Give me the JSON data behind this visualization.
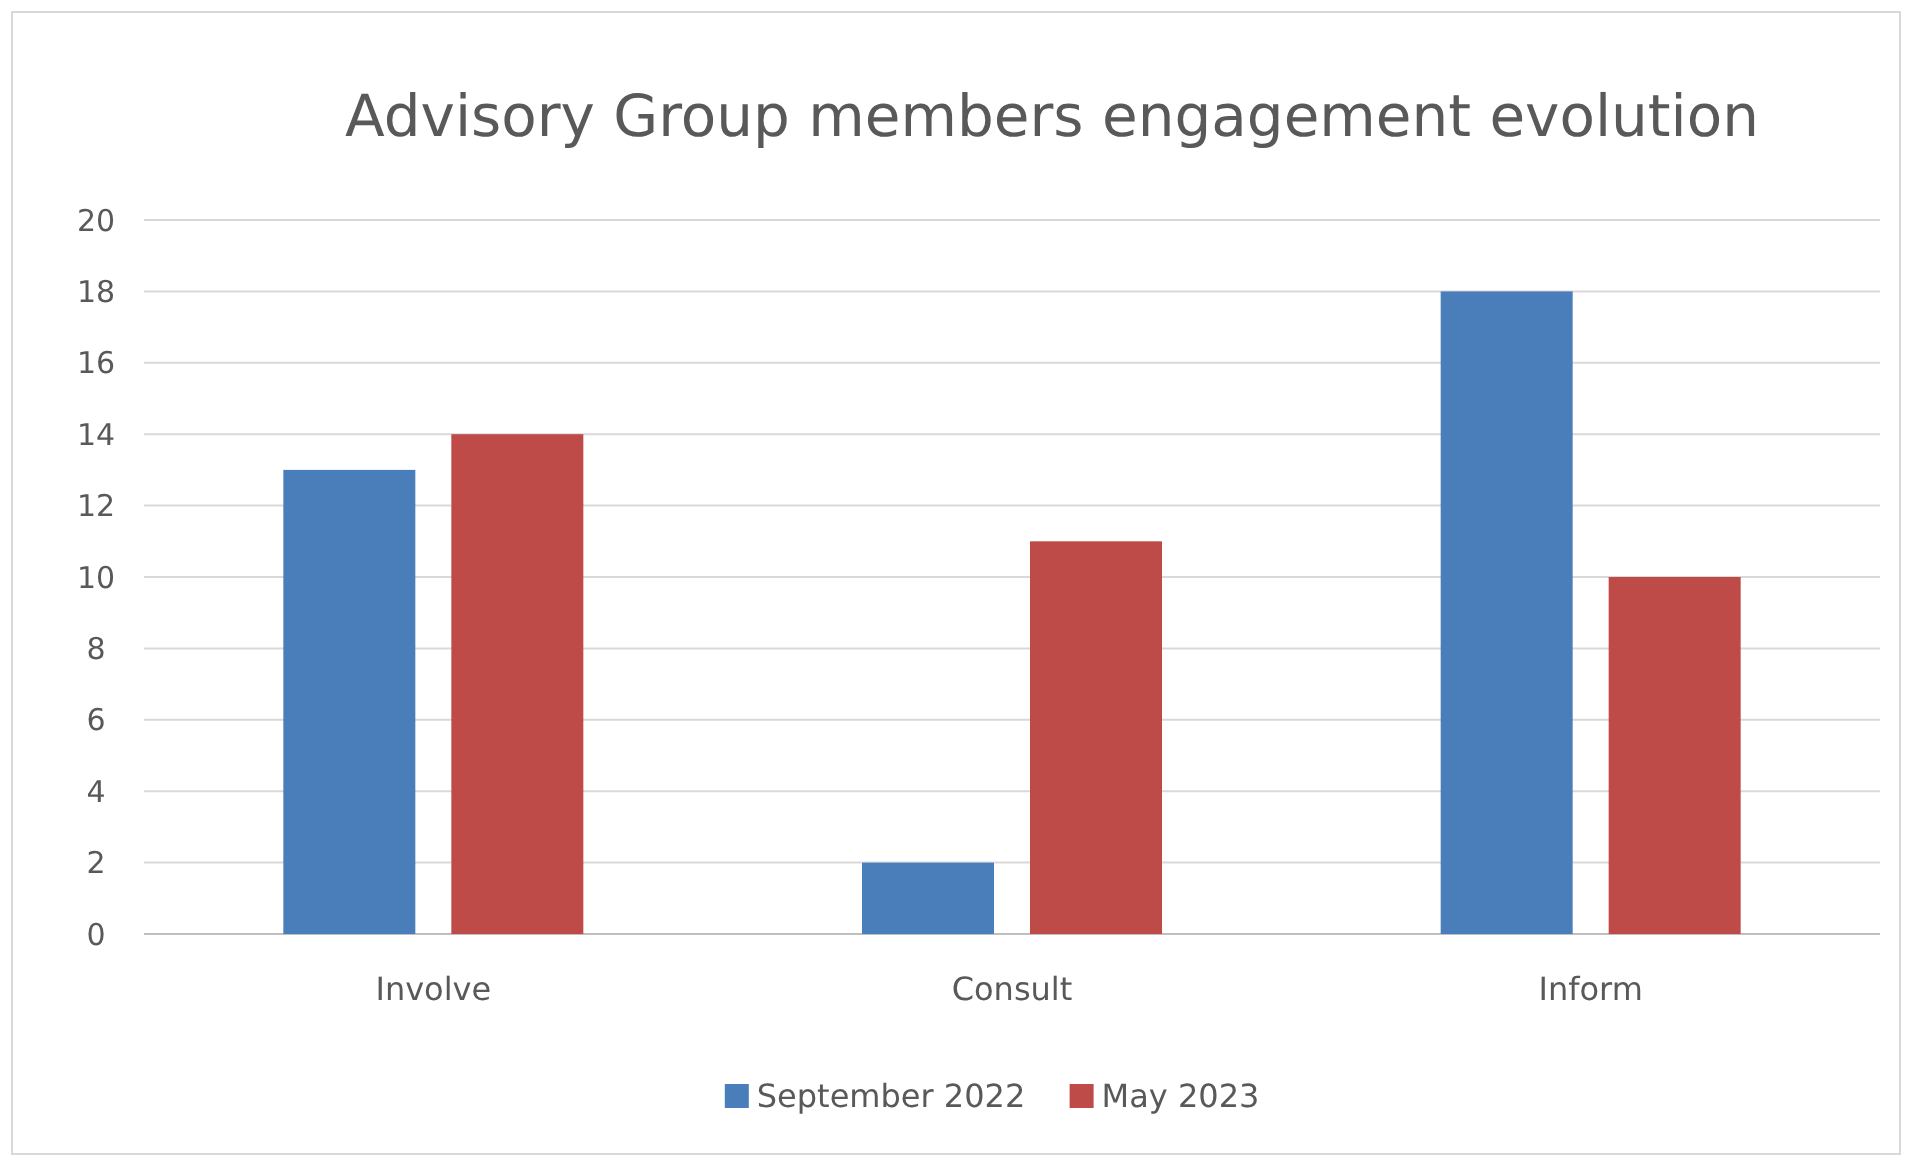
{
  "chart_data": {
    "type": "bar",
    "title": "Advisory Group members engagement evolution",
    "categories": [
      "Involve",
      "Consult",
      "Inform"
    ],
    "series": [
      {
        "name": "September 2022",
        "color": "#4a7ebb",
        "values": [
          13,
          2,
          18
        ]
      },
      {
        "name": "May 2023",
        "color": "#be4b48",
        "values": [
          14,
          11,
          10
        ]
      }
    ],
    "ylim": [
      0,
      20
    ],
    "yticks": [
      0,
      2,
      4,
      6,
      8,
      10,
      12,
      14,
      16,
      18,
      20
    ],
    "grid": "y",
    "legend": "bottom"
  }
}
